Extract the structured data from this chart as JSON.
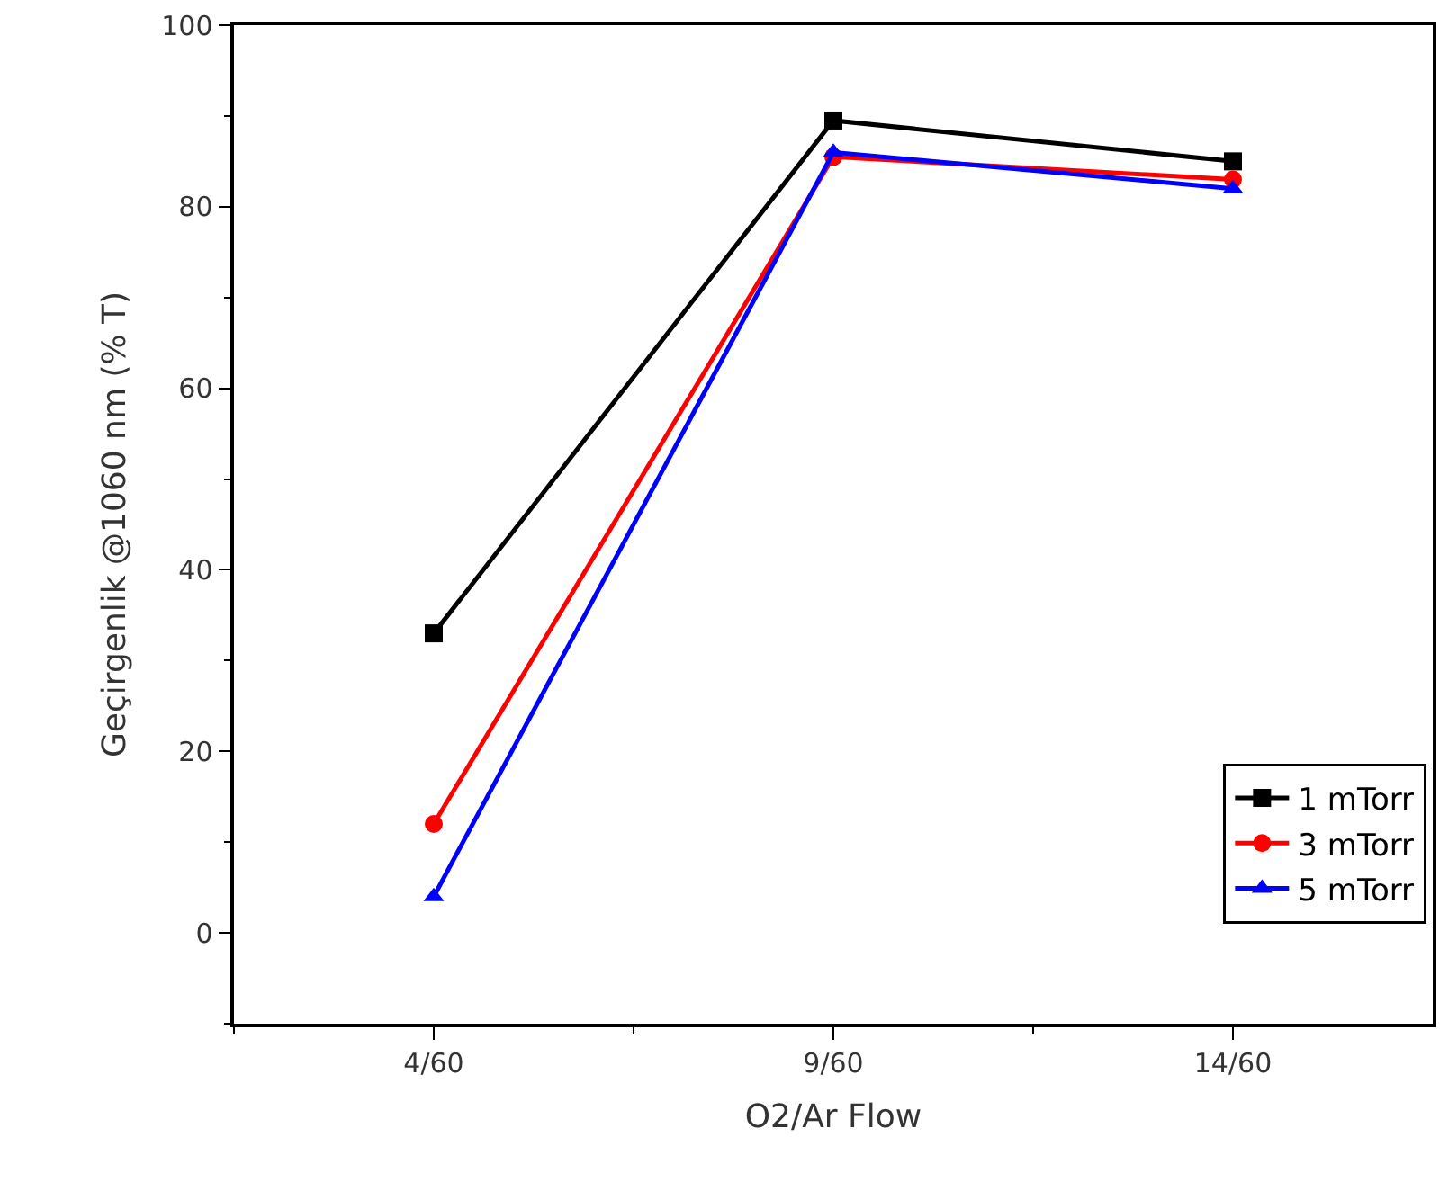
{
  "chart_data": {
    "type": "line",
    "xlabel": "O2/Ar Flow",
    "ylabel": "Geçirgenlik @1060 nm (% T)",
    "categories": [
      "4/60",
      "9/60",
      "14/60"
    ],
    "series": [
      {
        "name": "1 mTorr",
        "color": "#000000",
        "values": [
          33,
          89.5,
          85
        ],
        "marker": "square"
      },
      {
        "name": "3 mTorr",
        "color": "#ff0000",
        "values": [
          12,
          85.5,
          83
        ],
        "marker": "circle"
      },
      {
        "name": "5 mTorr",
        "color": "#0000ff",
        "values": [
          4,
          86,
          82
        ],
        "marker": "triangle"
      }
    ],
    "ylim": [
      -10,
      100
    ],
    "yticks": [
      0,
      20,
      40,
      60,
      80,
      100
    ],
    "legend": "bottom right",
    "line_style": "solid"
  }
}
